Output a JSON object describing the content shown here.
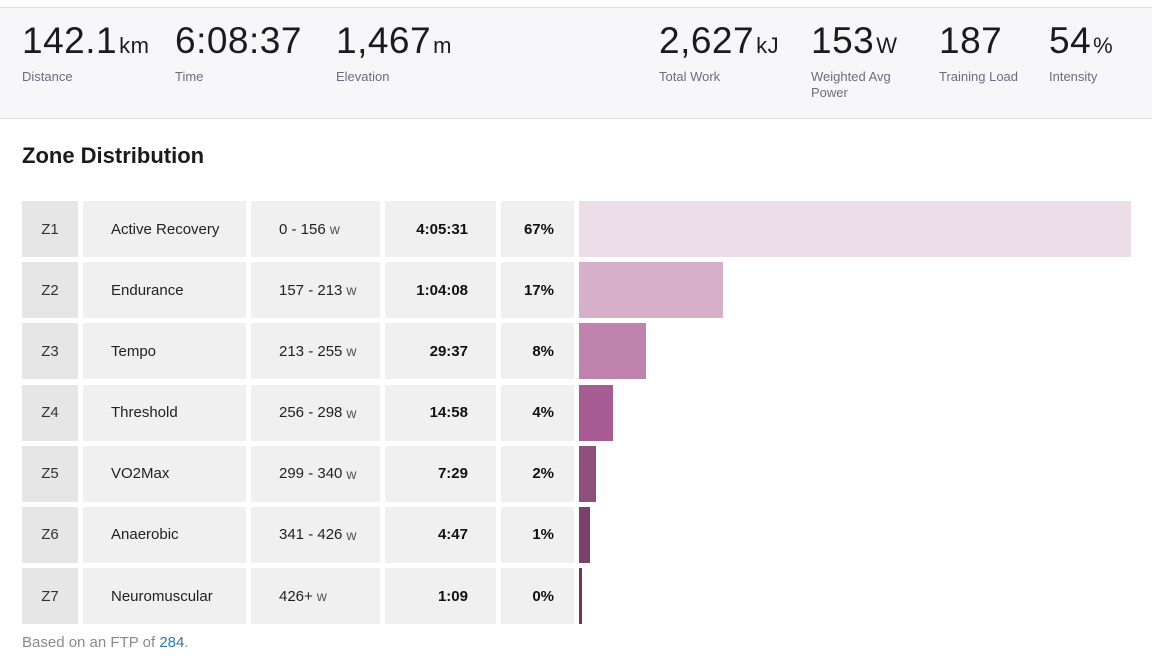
{
  "stats": [
    {
      "value": "142.1",
      "unit": "km",
      "label": "Distance"
    },
    {
      "value": "6:08:37",
      "unit": "",
      "label": "Time"
    },
    {
      "value": "1,467",
      "unit": "m",
      "label": "Elevation"
    },
    {
      "value": "2,627",
      "unit": "kJ",
      "label": "Total Work"
    },
    {
      "value": "153",
      "unit": "W",
      "label": "Weighted Avg Power"
    },
    {
      "value": "187",
      "unit": "",
      "label": "Training Load"
    },
    {
      "value": "54",
      "unit": "%",
      "label": "Intensity"
    }
  ],
  "zone_distribution": {
    "title": "Zone Distribution",
    "unit_label": "w",
    "zones": [
      {
        "zone": "Z1",
        "name": "Active Recovery",
        "range": "0 - 156",
        "time": "4:05:31",
        "seconds": 14731,
        "percent": "67%",
        "color": "#ecdde8"
      },
      {
        "zone": "Z2",
        "name": "Endurance",
        "range": "157 - 213",
        "time": "1:04:08",
        "seconds": 3848,
        "percent": "17%",
        "color": "#d6b0ca"
      },
      {
        "zone": "Z3",
        "name": "Tempo",
        "range": "213 - 255",
        "time": "29:37",
        "seconds": 1777,
        "percent": "8%",
        "color": "#bf84ae"
      },
      {
        "zone": "Z4",
        "name": "Threshold",
        "range": "256 - 298",
        "time": "14:58",
        "seconds": 898,
        "percent": "4%",
        "color": "#a65c93"
      },
      {
        "zone": "Z5",
        "name": "VO2Max",
        "range": "299 - 340",
        "time": "7:29",
        "seconds": 449,
        "percent": "2%",
        "color": "#8e4f7b"
      },
      {
        "zone": "Z6",
        "name": "Anaerobic",
        "range": "341 - 426",
        "time": "4:47",
        "seconds": 287,
        "percent": "1%",
        "color": "#7a426a"
      },
      {
        "zone": "Z7",
        "name": "Neuromuscular",
        "range": "426+",
        "time": "1:09",
        "seconds": 69,
        "percent": "0%",
        "color": "#6a3a5e"
      }
    ]
  },
  "footnote": {
    "prefix": "Based on an FTP of ",
    "ftp": "284",
    "suffix": "."
  }
}
